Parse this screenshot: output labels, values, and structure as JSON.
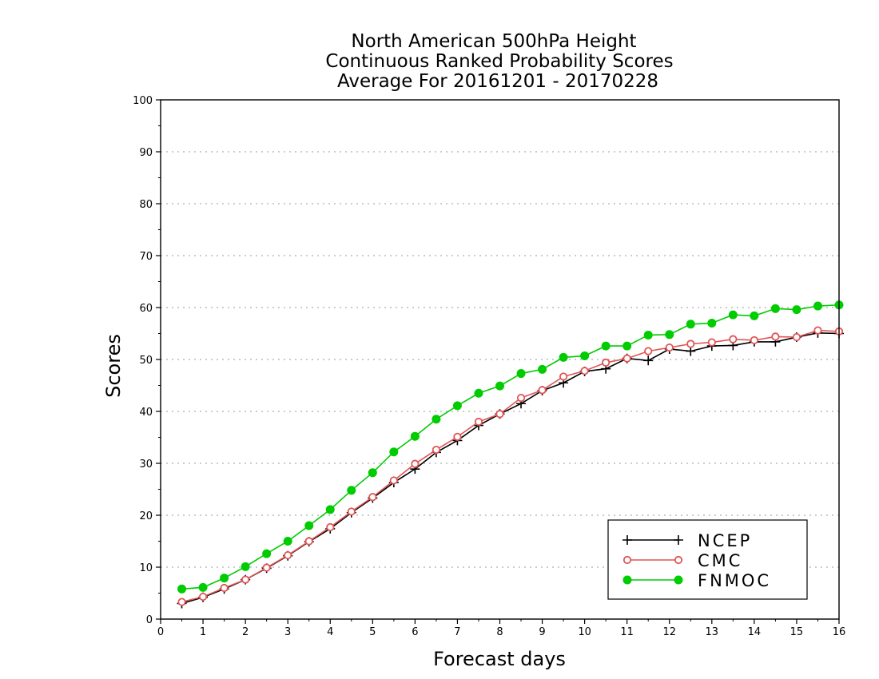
{
  "chart_data": {
    "type": "line",
    "title": [
      "North American 500hPa Height",
      "Continuous Ranked Probability Scores",
      "Average For 20161201 - 20170228"
    ],
    "xlabel": "Forecast days",
    "ylabel": "Scores",
    "xlim": [
      0,
      16
    ],
    "ylim": [
      0,
      100
    ],
    "x_ticks": [
      "0",
      "1",
      "2",
      "3",
      "4",
      "5",
      "6",
      "7",
      "8",
      "9",
      "10",
      "11",
      "12",
      "13",
      "14",
      "15",
      "16"
    ],
    "y_ticks": [
      "0",
      "10",
      "20",
      "30",
      "40",
      "50",
      "60",
      "70",
      "80",
      "90",
      "100"
    ],
    "grid": "horizontal dotted",
    "legend_position": "bottom-right",
    "x": [
      0.5,
      1,
      1.5,
      2,
      2.5,
      3,
      3.5,
      4,
      4.5,
      5,
      5.5,
      6,
      6.5,
      7,
      7.5,
      8,
      8.5,
      9,
      9.5,
      10,
      10.5,
      11,
      11.5,
      12,
      12.5,
      13,
      13.5,
      14,
      14.5,
      15,
      15.5,
      16
    ],
    "series": [
      {
        "name": "NCEP",
        "color": "#000000",
        "marker": "plus",
        "values": [
          3.0,
          4.2,
          5.8,
          7.6,
          9.8,
          12.2,
          14.9,
          17.4,
          20.5,
          23.3,
          26.3,
          28.9,
          32.1,
          34.4,
          37.3,
          39.5,
          41.5,
          44.0,
          45.5,
          47.7,
          48.2,
          50.2,
          49.8,
          52.0,
          51.6,
          52.6,
          52.7,
          53.4,
          53.4,
          54.3,
          55.1,
          55.0
        ]
      },
      {
        "name": "CMC",
        "color": "#e05555",
        "marker": "open-circle",
        "values": [
          3.3,
          4.3,
          6.0,
          7.6,
          9.9,
          12.3,
          15.0,
          17.7,
          20.7,
          23.5,
          26.7,
          29.9,
          32.6,
          35.1,
          38.0,
          39.5,
          42.6,
          44.1,
          46.7,
          47.8,
          49.4,
          50.2,
          51.6,
          52.3,
          53.0,
          53.3,
          53.9,
          53.7,
          54.4,
          54.3,
          55.6,
          55.4
        ]
      },
      {
        "name": "FNMOC",
        "color": "#00cc00",
        "marker": "filled-circle",
        "values": [
          5.8,
          6.1,
          7.9,
          10.1,
          12.6,
          15.0,
          18.0,
          21.1,
          24.8,
          28.2,
          32.2,
          35.2,
          38.5,
          41.1,
          43.5,
          44.9,
          47.3,
          48.1,
          50.4,
          50.7,
          52.6,
          52.6,
          54.7,
          54.8,
          56.8,
          57.0,
          58.6,
          58.4,
          59.8,
          59.6,
          60.3,
          60.5
        ]
      }
    ]
  }
}
